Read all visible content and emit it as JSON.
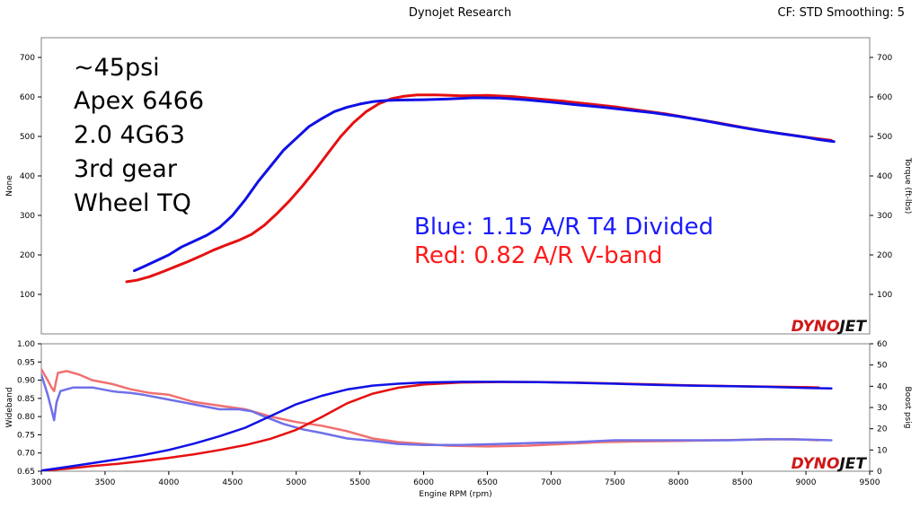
{
  "header": {
    "title": "Dynojet Research",
    "right_info": "CF: STD Smoothing: 5"
  },
  "logo": {
    "text_a": "DYNO",
    "text_b": "JET"
  },
  "colors": {
    "blue": "#1010e6",
    "red": "#e61010",
    "blue_light": "#7070e8",
    "red_light": "#f07070",
    "grid": "#dcdcdc",
    "frame": "#808080"
  },
  "annotations": {
    "lines": [
      "~45psi",
      "Apex 6466",
      "2.0 4G63",
      "3rd gear",
      "Wheel TQ"
    ],
    "blue_label": "Blue: 1.15 A/R T4 Divided",
    "red_label": "Red:  0.82 A/R V-band"
  },
  "chart_data": [
    {
      "id": "torque",
      "type": "line",
      "xlim": [
        3000,
        9500
      ],
      "ylim": [
        0,
        750
      ],
      "x_ticks": [
        3000,
        3500,
        4000,
        4500,
        5000,
        5500,
        6000,
        6500,
        7000,
        7500,
        8000,
        8500,
        9000,
        9500
      ],
      "y_ticks": [
        100,
        200,
        300,
        400,
        500,
        600,
        700
      ],
      "ylabel_left": "None",
      "ylabel_right": "Torque (ft-lbs)",
      "grid": false,
      "series": [
        {
          "name": "Blue: 1.15 A/R T4 Divided",
          "color": "#1010e6",
          "x": [
            3730,
            3800,
            3900,
            4000,
            4100,
            4200,
            4300,
            4400,
            4500,
            4600,
            4700,
            4800,
            4900,
            5000,
            5100,
            5200,
            5300,
            5400,
            5500,
            5600,
            5700,
            5800,
            6000,
            6200,
            6400,
            6600,
            6800,
            7000,
            7200,
            7400,
            7600,
            7800,
            8000,
            8200,
            8400,
            8600,
            8800,
            9000,
            9100,
            9220
          ],
          "y": [
            160,
            170,
            185,
            200,
            220,
            235,
            250,
            270,
            300,
            340,
            385,
            425,
            465,
            495,
            525,
            545,
            563,
            574,
            582,
            588,
            591,
            592,
            593,
            595,
            598,
            597,
            593,
            587,
            580,
            574,
            567,
            560,
            551,
            540,
            528,
            517,
            507,
            498,
            492,
            487
          ]
        },
        {
          "name": "Red:  0.82 A/R V-band",
          "color": "#e61010",
          "x": [
            3670,
            3750,
            3850,
            3950,
            4050,
            4150,
            4250,
            4350,
            4450,
            4550,
            4650,
            4750,
            4850,
            4950,
            5050,
            5150,
            5250,
            5350,
            5450,
            5550,
            5650,
            5750,
            5850,
            5950,
            6100,
            6300,
            6500,
            6700,
            6900,
            7100,
            7300,
            7500,
            7700,
            7900,
            8100,
            8300,
            8500,
            8700,
            8900,
            9000,
            9200
          ],
          "y": [
            132,
            136,
            145,
            157,
            170,
            183,
            197,
            212,
            225,
            237,
            252,
            275,
            305,
            338,
            375,
            415,
            458,
            500,
            535,
            563,
            583,
            596,
            602,
            605,
            605,
            603,
            604,
            601,
            595,
            589,
            582,
            575,
            566,
            557,
            546,
            535,
            523,
            512,
            503,
            498,
            490
          ]
        }
      ]
    },
    {
      "id": "wideband_boost",
      "type": "line",
      "xlim": [
        3000,
        9500
      ],
      "ylim": [
        0.65,
        1.0
      ],
      "y2lim": [
        0,
        60
      ],
      "x_ticks": [
        3000,
        3500,
        4000,
        4500,
        5000,
        5500,
        6000,
        6500,
        7000,
        7500,
        8000,
        8500,
        9000,
        9500
      ],
      "y_ticks": [
        0.65,
        0.7,
        0.75,
        0.8,
        0.85,
        0.9,
        0.95,
        1.0
      ],
      "y2_ticks": [
        0,
        10,
        20,
        30,
        40,
        50,
        60
      ],
      "xlabel": "Engine RPM  (rpm)",
      "ylabel_left": "Wideband",
      "ylabel_right": "Boost psig",
      "grid": false,
      "series": [
        {
          "name": "Blue Wideband",
          "axis": "left",
          "color": "#7070e8",
          "x": [
            3000,
            3050,
            3080,
            3100,
            3120,
            3150,
            3250,
            3400,
            3550,
            3600,
            3700,
            3800,
            3950,
            4100,
            4250,
            4400,
            4550,
            4650,
            4750,
            4900,
            5050,
            5200,
            5400,
            5600,
            5800,
            6000,
            6300,
            6600,
            6900,
            7200,
            7500,
            7800,
            8100,
            8400,
            8700,
            9000,
            9200
          ],
          "y": [
            0.915,
            0.86,
            0.82,
            0.79,
            0.84,
            0.87,
            0.88,
            0.88,
            0.87,
            0.868,
            0.865,
            0.86,
            0.85,
            0.84,
            0.83,
            0.82,
            0.82,
            0.815,
            0.8,
            0.78,
            0.765,
            0.755,
            0.74,
            0.733,
            0.725,
            0.722,
            0.722,
            0.725,
            0.728,
            0.73,
            0.735,
            0.735,
            0.735,
            0.735,
            0.738,
            0.737,
            0.735
          ]
        },
        {
          "name": "Red Wideband",
          "axis": "left",
          "color": "#f07070",
          "x": [
            3000,
            3050,
            3080,
            3100,
            3130,
            3200,
            3300,
            3400,
            3550,
            3700,
            3850,
            4000,
            4200,
            4400,
            4600,
            4800,
            5000,
            5200,
            5400,
            5600,
            5800,
            6000,
            6200,
            6500,
            6800,
            7100,
            7400,
            7700,
            8000,
            8300,
            8600,
            8900,
            9100
          ],
          "y": [
            0.93,
            0.9,
            0.88,
            0.87,
            0.92,
            0.925,
            0.915,
            0.9,
            0.89,
            0.875,
            0.865,
            0.86,
            0.84,
            0.83,
            0.82,
            0.8,
            0.785,
            0.775,
            0.76,
            0.74,
            0.73,
            0.725,
            0.72,
            0.718,
            0.72,
            0.725,
            0.73,
            0.732,
            0.733,
            0.735,
            0.737,
            0.738,
            0.735
          ]
        },
        {
          "name": "Blue Boost",
          "axis": "right",
          "color": "#1010e6",
          "x": [
            3000,
            3200,
            3400,
            3600,
            3800,
            4000,
            4200,
            4400,
            4600,
            4800,
            5000,
            5200,
            5400,
            5600,
            5800,
            6000,
            6300,
            6600,
            6900,
            7200,
            7500,
            7800,
            8100,
            8400,
            8700,
            9000,
            9200
          ],
          "y": [
            0.3,
            2,
            3.8,
            5.6,
            7.6,
            10,
            13,
            16.5,
            20.5,
            26,
            31.5,
            35.5,
            38.5,
            40.3,
            41.2,
            41.8,
            42.1,
            42.1,
            41.9,
            41.6,
            41.2,
            40.7,
            40.3,
            40,
            39.7,
            39.2,
            39
          ]
        },
        {
          "name": "Red Boost",
          "axis": "right",
          "color": "#e61010",
          "x": [
            3000,
            3200,
            3400,
            3600,
            3800,
            4000,
            4200,
            4400,
            4600,
            4800,
            5000,
            5200,
            5400,
            5600,
            5800,
            6000,
            6300,
            6600,
            6900,
            7200,
            7500,
            7800,
            8100,
            8400,
            8700,
            9000,
            9100
          ],
          "y": [
            0.2,
            1.2,
            2.4,
            3.5,
            4.8,
            6.3,
            8,
            10,
            12.3,
            15.3,
            19.5,
            25.5,
            32,
            36.5,
            39.3,
            40.8,
            41.8,
            42,
            42,
            41.7,
            41.3,
            40.9,
            40.4,
            40.1,
            39.8,
            39.6,
            39.4
          ]
        }
      ]
    }
  ]
}
